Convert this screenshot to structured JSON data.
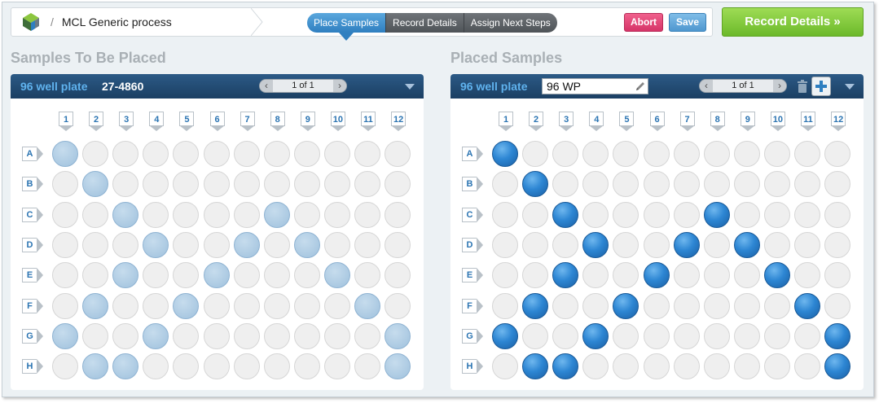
{
  "header": {
    "breadcrumb_sep": "/",
    "title": "MCL Generic process",
    "steps": [
      "Place Samples",
      "Record Details",
      "Assign Next Steps"
    ],
    "active_step": 0,
    "abort_label": "Abort",
    "save_label": "Save",
    "next_label": "Record Details »"
  },
  "colors": {
    "accent_blue": "#2f7fc0",
    "abort_pink": "#d63468",
    "next_green": "#6cb92a"
  },
  "columns": [
    "1",
    "2",
    "3",
    "4",
    "5",
    "6",
    "7",
    "8",
    "9",
    "10",
    "11",
    "12"
  ],
  "rows": [
    "A",
    "B",
    "C",
    "D",
    "E",
    "F",
    "G",
    "H"
  ],
  "source": {
    "section_title": "Samples To Be Placed",
    "plate_type": "96 well plate",
    "plate_id": "27-4860",
    "pager": "1 of 1",
    "wells": [
      "A1",
      "B2",
      "C3",
      "C8",
      "D4",
      "D7",
      "D9",
      "E3",
      "E6",
      "E10",
      "F2",
      "F5",
      "F11",
      "G1",
      "G4",
      "G12",
      "H2",
      "H3",
      "H12"
    ]
  },
  "destination": {
    "section_title": "Placed Samples",
    "plate_type": "96 well plate",
    "plate_name": "96 WP",
    "pager": "1 of 1",
    "wells": [
      "A1",
      "B2",
      "C3",
      "C8",
      "D4",
      "D7",
      "D9",
      "E3",
      "E6",
      "E10",
      "F2",
      "F5",
      "F11",
      "G1",
      "G4",
      "G12",
      "H2",
      "H3",
      "H12"
    ]
  }
}
